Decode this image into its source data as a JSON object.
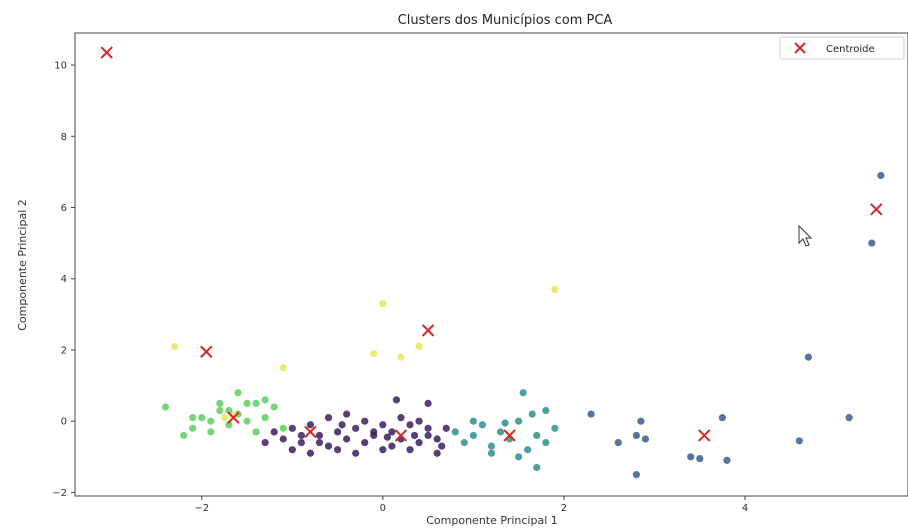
{
  "chart_data": {
    "type": "scatter",
    "title": "Clusters dos Municípios com PCA",
    "xlabel": "Componente Principal 1",
    "ylabel": "Componente Principal 2",
    "xlim": [
      -3.4,
      5.8
    ],
    "ylim": [
      -2.1,
      10.9
    ],
    "xticks": [
      -2,
      0,
      2,
      4
    ],
    "yticks": [
      -2,
      0,
      2,
      4,
      6,
      8,
      10
    ],
    "grid": false,
    "legend": {
      "position": "top-right",
      "entries": [
        "Centroide"
      ]
    },
    "colors": {
      "cluster_0": "#3b1f5c",
      "cluster_1": "#3a5a8f",
      "cluster_2": "#2f8f8a",
      "cluster_3": "#5fce5f",
      "cluster_4": "#e8e85a",
      "centroid": "#d62728"
    },
    "series": [
      {
        "cluster": 0,
        "points": [
          [
            -1.2,
            -0.3
          ],
          [
            -1.1,
            -0.5
          ],
          [
            -1.0,
            -0.2
          ],
          [
            -0.9,
            -0.6
          ],
          [
            -0.8,
            -0.1
          ],
          [
            -0.7,
            -0.4
          ],
          [
            -0.6,
            -0.7
          ],
          [
            -0.5,
            -0.3
          ],
          [
            -0.4,
            -0.5
          ],
          [
            -0.3,
            -0.2
          ],
          [
            -0.2,
            -0.6
          ],
          [
            -0.1,
            -0.4
          ],
          [
            0.0,
            -0.8
          ],
          [
            0.1,
            -0.3
          ],
          [
            0.2,
            -0.5
          ],
          [
            0.3,
            -0.1
          ],
          [
            0.4,
            -0.6
          ],
          [
            0.5,
            -0.4
          ],
          [
            0.6,
            -0.9
          ],
          [
            0.7,
            -0.2
          ],
          [
            -1.0,
            -0.8
          ],
          [
            -0.8,
            -0.9
          ],
          [
            -0.6,
            0.1
          ],
          [
            -0.4,
            0.2
          ],
          [
            -0.2,
            0.0
          ],
          [
            0.0,
            -0.1
          ],
          [
            0.2,
            0.1
          ],
          [
            0.4,
            0.0
          ],
          [
            0.6,
            -0.5
          ],
          [
            -0.9,
            -0.4
          ],
          [
            -0.5,
            -0.8
          ],
          [
            -0.3,
            -0.9
          ],
          [
            0.1,
            -0.7
          ],
          [
            0.3,
            -0.8
          ],
          [
            0.5,
            -0.2
          ],
          [
            -1.3,
            -0.6
          ],
          [
            -0.7,
            -0.6
          ],
          [
            0.15,
            0.6
          ],
          [
            0.5,
            0.5
          ],
          [
            -0.1,
            -0.3
          ],
          [
            0.35,
            -0.4
          ],
          [
            -0.45,
            -0.1
          ],
          [
            0.65,
            -0.7
          ],
          [
            0.05,
            -0.45
          ]
        ]
      },
      {
        "cluster": 1,
        "points": [
          [
            2.3,
            0.2
          ],
          [
            2.6,
            -0.6
          ],
          [
            2.8,
            -0.4
          ],
          [
            2.9,
            -0.5
          ],
          [
            2.8,
            -1.5
          ],
          [
            2.85,
            0.0
          ],
          [
            3.4,
            -1.0
          ],
          [
            3.5,
            -1.05
          ],
          [
            3.75,
            0.1
          ],
          [
            3.8,
            -1.1
          ],
          [
            4.6,
            -0.55
          ],
          [
            4.7,
            1.8
          ],
          [
            5.15,
            0.1
          ],
          [
            5.4,
            5.0
          ],
          [
            5.5,
            6.9
          ]
        ]
      },
      {
        "cluster": 2,
        "points": [
          [
            0.8,
            -0.3
          ],
          [
            0.9,
            -0.6
          ],
          [
            1.0,
            -0.4
          ],
          [
            1.1,
            -0.1
          ],
          [
            1.2,
            -0.7
          ],
          [
            1.3,
            -0.3
          ],
          [
            1.4,
            -0.5
          ],
          [
            1.5,
            0.0
          ],
          [
            1.6,
            -0.8
          ],
          [
            1.7,
            -0.4
          ],
          [
            1.8,
            -0.6
          ],
          [
            1.9,
            -0.2
          ],
          [
            1.5,
            -1.0
          ],
          [
            1.7,
            -1.3
          ],
          [
            1.8,
            0.3
          ],
          [
            1.55,
            0.8
          ],
          [
            1.0,
            0.0
          ],
          [
            1.2,
            -0.9
          ],
          [
            1.35,
            -0.05
          ],
          [
            1.65,
            0.2
          ]
        ]
      },
      {
        "cluster": 3,
        "points": [
          [
            -2.4,
            0.4
          ],
          [
            -2.2,
            -0.4
          ],
          [
            -2.1,
            -0.2
          ],
          [
            -2.0,
            0.1
          ],
          [
            -1.9,
            -0.3
          ],
          [
            -1.8,
            0.3
          ],
          [
            -1.7,
            -0.1
          ],
          [
            -1.6,
            0.2
          ],
          [
            -1.5,
            0.0
          ],
          [
            -1.4,
            -0.3
          ],
          [
            -1.3,
            0.1
          ],
          [
            -1.2,
            0.4
          ],
          [
            -1.1,
            -0.2
          ],
          [
            -1.6,
            0.8
          ],
          [
            -1.5,
            0.5
          ],
          [
            -1.4,
            0.5
          ],
          [
            -1.3,
            0.6
          ],
          [
            -1.8,
            0.5
          ],
          [
            -2.1,
            0.1
          ],
          [
            -1.9,
            0.0
          ],
          [
            -1.7,
            0.3
          ]
        ]
      },
      {
        "cluster": 4,
        "points": [
          [
            -2.3,
            2.1
          ],
          [
            -1.1,
            1.5
          ],
          [
            -0.1,
            1.9
          ],
          [
            0.0,
            3.3
          ],
          [
            0.2,
            1.8
          ],
          [
            0.4,
            2.1
          ],
          [
            1.9,
            3.7
          ],
          [
            -1.75,
            0.1
          ],
          [
            -1.65,
            0.15
          ]
        ]
      }
    ],
    "centroids": [
      [
        -3.05,
        10.35
      ],
      [
        -1.95,
        1.95
      ],
      [
        -1.65,
        0.1
      ],
      [
        -0.8,
        -0.3
      ],
      [
        0.2,
        -0.4
      ],
      [
        0.5,
        2.55
      ],
      [
        1.4,
        -0.4
      ],
      [
        3.55,
        -0.4
      ],
      [
        5.45,
        5.95
      ]
    ]
  }
}
